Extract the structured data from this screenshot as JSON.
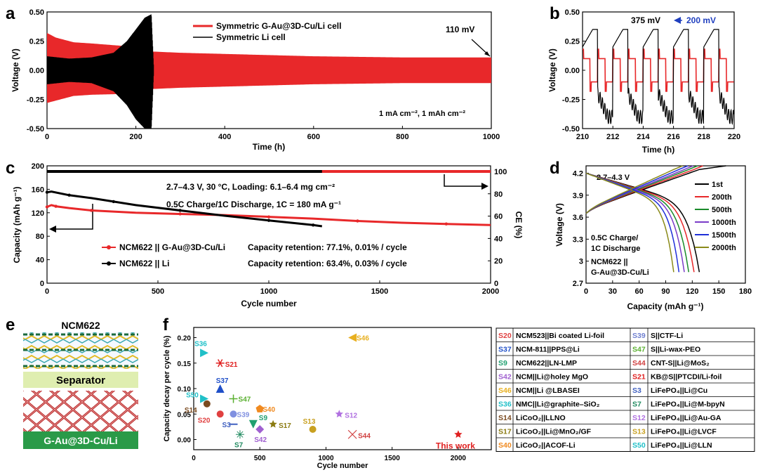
{
  "panels": {
    "a": "a",
    "b": "b",
    "c": "c",
    "d": "d",
    "e": "e",
    "f": "f"
  },
  "colors": {
    "red": "#e8282a",
    "black": "#000000",
    "blue": "#1f3fbf",
    "green": "#1a8a2a"
  },
  "chart_data": [
    {
      "id": "a",
      "type": "line",
      "xlabel": "Time (h)",
      "ylabel": "Voltage (V)",
      "xlim": [
        0,
        1000
      ],
      "ylim": [
        -0.5,
        0.5
      ],
      "xticks": [
        0,
        200,
        400,
        600,
        800,
        1000
      ],
      "yticks": [
        -0.5,
        -0.25,
        0.0,
        0.25,
        0.5
      ],
      "ytick_labels": [
        "-0.50",
        "-0.25",
        "0.00",
        "0.25",
        "0.50"
      ],
      "series": [
        {
          "name": "Symmetric G-Au@3D-Cu/Li cell",
          "color": "#e8282a",
          "envelope": {
            "x": [
              0,
              20,
              60,
              100,
              200,
              240,
              300,
              400,
              500,
              600,
              700,
              800,
              900,
              1000
            ],
            "upper": [
              0.32,
              0.28,
              0.24,
              0.23,
              0.2,
              0.16,
              0.15,
              0.14,
              0.13,
              0.12,
              0.115,
              0.11,
              0.11,
              0.11
            ],
            "lower": [
              -0.28,
              -0.26,
              -0.22,
              -0.21,
              -0.2,
              -0.16,
              -0.15,
              -0.14,
              -0.13,
              -0.12,
              -0.115,
              -0.11,
              -0.11,
              -0.11
            ]
          }
        },
        {
          "name": "Symmetric Li cell",
          "color": "#000000",
          "envelope": {
            "x": [
              0,
              50,
              100,
              150,
              180,
              200,
              220,
              235,
              240
            ],
            "upper": [
              0.12,
              0.1,
              0.11,
              0.15,
              0.25,
              0.35,
              0.45,
              0.48,
              0.05
            ],
            "lower": [
              -0.12,
              -0.1,
              -0.11,
              -0.18,
              -0.3,
              -0.42,
              -0.5,
              -0.5,
              -0.05
            ]
          }
        }
      ],
      "annotations": [
        "110 mV",
        "1 mA cm⁻², 1 mAh cm⁻²"
      ]
    },
    {
      "id": "b",
      "type": "line",
      "xlabel": "Time (h)",
      "ylabel": "Voltage (V)",
      "xlim": [
        210,
        220
      ],
      "ylim": [
        -0.5,
        0.5
      ],
      "xticks": [
        210,
        212,
        214,
        216,
        218,
        220
      ],
      "yticks": [
        -0.5,
        -0.25,
        0.0,
        0.25,
        0.5
      ],
      "ytick_labels": [
        "-0.50",
        "-0.25",
        "0.00",
        "0.25",
        "0.50"
      ],
      "annotations": [
        "375 mV",
        "200 mV"
      ]
    },
    {
      "id": "c",
      "type": "line",
      "xlabel": "Cycle number",
      "ylabel": "Capacity (mAh g⁻¹)",
      "y2label": "CE (%)",
      "xlim": [
        0,
        2000
      ],
      "ylim": [
        0,
        200
      ],
      "y2lim": [
        0,
        105
      ],
      "xticks": [
        0,
        500,
        1000,
        1500,
        2000
      ],
      "yticks": [
        0,
        40,
        80,
        120,
        160,
        200
      ],
      "y2ticks": [
        0,
        20,
        40,
        60,
        80,
        100
      ],
      "series": [
        {
          "name": "NCM622 || G-Au@3D-Cu/Li",
          "color": "#e8282a",
          "x": [
            0,
            20,
            40,
            100,
            200,
            400,
            600,
            800,
            1000,
            1200,
            1400,
            1600,
            1800,
            2000
          ],
          "capacity": [
            130,
            133,
            131,
            128,
            124,
            120,
            118,
            116,
            113,
            110,
            106,
            103,
            101,
            99
          ],
          "ce": [
            100,
            100,
            100,
            100,
            100,
            100,
            100,
            100,
            100,
            100,
            100,
            100,
            100,
            100
          ],
          "retention": "Capacity retention: 77.1%, 0.01% / cycle"
        },
        {
          "name": "NCM622 || Li",
          "color": "#000000",
          "x": [
            0,
            20,
            100,
            200,
            300,
            400,
            600,
            800,
            1000,
            1100,
            1200,
            1240
          ],
          "capacity": [
            155,
            156,
            150,
            145,
            139,
            133,
            124,
            115,
            107,
            103,
            99,
            97
          ],
          "ce": [
            100,
            100,
            100,
            100,
            100,
            100,
            100,
            100,
            100,
            100,
            100,
            100
          ],
          "retention": "Capacity retention: 63.4%, 0.03% / cycle"
        }
      ],
      "annotations": [
        "2.7–4.3 V, 30 °C, Loading: 6.1–6.4 mg cm⁻²",
        "0.5C Charge/1C Discharge, 1C = 180 mA g⁻¹"
      ]
    },
    {
      "id": "d",
      "type": "line",
      "xlabel": "Capacity (mAh g⁻¹)",
      "ylabel": "Voltage (V)",
      "xlim": [
        0,
        180
      ],
      "ylim": [
        2.7,
        4.3
      ],
      "xticks": [
        0,
        30,
        60,
        90,
        120,
        150,
        180
      ],
      "yticks": [
        2.7,
        3.0,
        3.3,
        3.6,
        3.9,
        4.2
      ],
      "series": [
        {
          "name": "1st",
          "color": "#000000",
          "cap": 128
        },
        {
          "name": "200th",
          "color": "#e8282a",
          "cap": 122
        },
        {
          "name": "500th",
          "color": "#1a8a2a",
          "cap": 116
        },
        {
          "name": "1000th",
          "color": "#7a3cc8",
          "cap": 111
        },
        {
          "name": "1500th",
          "color": "#1f2fd8",
          "cap": 105
        },
        {
          "name": "2000th",
          "color": "#8a8a1a",
          "cap": 99
        }
      ],
      "annotations": [
        "2.7–4.3 V",
        "0.5C Charge/",
        "1C Discharge",
        "NCM622 ||",
        "G-Au@3D-Cu/Li"
      ]
    },
    {
      "id": "f",
      "type": "scatter",
      "xlabel": "Cycle number",
      "ylabel": "Capacity decay per cycle (%)",
      "xlim": [
        0,
        2250
      ],
      "ylim": [
        -0.02,
        0.22
      ],
      "xticks": [
        0,
        500,
        1000,
        1500,
        2000
      ],
      "yticks": [
        0.0,
        0.05,
        0.1,
        0.15,
        0.2
      ],
      "ytick_labels": [
        "0.00",
        "0.05",
        "0.10",
        "0.15",
        "0.20"
      ],
      "points": [
        {
          "label": "S46",
          "x": 1200,
          "y": 0.2,
          "color": "#e8b020",
          "marker": "tri-left"
        },
        {
          "label": "S36",
          "x": 80,
          "y": 0.17,
          "color": "#20c0c8",
          "marker": "tri-right"
        },
        {
          "label": "S21",
          "x": 200,
          "y": 0.15,
          "color": "#e02020",
          "marker": "star6"
        },
        {
          "label": "S37",
          "x": 200,
          "y": 0.1,
          "color": "#1f4fc8",
          "marker": "tri-up"
        },
        {
          "label": "S47",
          "x": 300,
          "y": 0.08,
          "color": "#5ab030",
          "marker": "plus"
        },
        {
          "label": "S50",
          "x": 80,
          "y": 0.08,
          "color": "#20c0c8",
          "marker": "tri-right"
        },
        {
          "label": "S14",
          "x": 100,
          "y": 0.07,
          "color": "#7a4a20",
          "marker": "circle"
        },
        {
          "label": "S40",
          "x": 500,
          "y": 0.06,
          "color": "#f08a20",
          "marker": "pentagon"
        },
        {
          "label": "S39",
          "x": 300,
          "y": 0.05,
          "color": "#8090e0",
          "marker": "circle"
        },
        {
          "label": "S20",
          "x": 200,
          "y": 0.05,
          "color": "#e04040",
          "marker": "circle"
        },
        {
          "label": "S12",
          "x": 1100,
          "y": 0.05,
          "color": "#b070e0",
          "marker": "star"
        },
        {
          "label": "S3",
          "x": 300,
          "y": 0.03,
          "color": "#4060c0",
          "marker": "dash"
        },
        {
          "label": "S9",
          "x": 450,
          "y": 0.03,
          "color": "#20a070",
          "marker": "tri-down"
        },
        {
          "label": "S17",
          "x": 600,
          "y": 0.03,
          "color": "#8a7a10",
          "marker": "star"
        },
        {
          "label": "S42",
          "x": 500,
          "y": 0.02,
          "color": "#a060d0",
          "marker": "diamond"
        },
        {
          "label": "S13",
          "x": 900,
          "y": 0.02,
          "color": "#c8a020",
          "marker": "circle"
        },
        {
          "label": "S7",
          "x": 350,
          "y": 0.01,
          "color": "#208a60",
          "marker": "asterisk"
        },
        {
          "label": "S44",
          "x": 1200,
          "y": 0.01,
          "color": "#d04040",
          "marker": "x"
        },
        {
          "label": "This work",
          "x": 2000,
          "y": 0.01,
          "color": "#e02020",
          "marker": "star"
        }
      ]
    }
  ],
  "panel_e": {
    "top": "NCM622",
    "separator": "Separator",
    "bottom": "G-Au@3D-Cu/Li"
  },
  "legend_table": [
    {
      "id": "S20",
      "text": "NCM523||Bi coated Li-foil",
      "color": "#e04040"
    },
    {
      "id": "S39",
      "text": "S||CTF-Li",
      "color": "#7080d0"
    },
    {
      "id": "S37",
      "text": "NCM-811||PPS@Li",
      "color": "#1f4fc8"
    },
    {
      "id": "S47",
      "text": "S||Li-wax-PEO",
      "color": "#5ab030"
    },
    {
      "id": "S9",
      "text": "NCM622||LN-LMP",
      "color": "#20a070"
    },
    {
      "id": "S44",
      "text": "CNT-S||Li@MoS₂",
      "color": "#d04040"
    },
    {
      "id": "S42",
      "text": "NCM||Li@holey MgO",
      "color": "#a060d0"
    },
    {
      "id": "S21",
      "text": "KB@S||PTCDI/Li-foil",
      "color": "#e02020"
    },
    {
      "id": "S46",
      "text": "NCM||Li @LBASEI",
      "color": "#e8b020"
    },
    {
      "id": "S3",
      "text": "LiFePO₄||Li@Cu",
      "color": "#4060c0"
    },
    {
      "id": "S36",
      "text": "NMC||Li@graphite–SiO₂",
      "color": "#20c0c8"
    },
    {
      "id": "S7",
      "text": "LiFePO₄||Li@M-bpyN",
      "color": "#208a60"
    },
    {
      "id": "S14",
      "text": "LiCoO₂||LLNO",
      "color": "#7a4a20"
    },
    {
      "id": "S12",
      "text": "LiFePO₄||Li@Au-GA",
      "color": "#b070e0"
    },
    {
      "id": "S17",
      "text": "LiCoO₂||Li@MnO₂/GF",
      "color": "#8a7a10"
    },
    {
      "id": "S13",
      "text": "LiFePO₄||Li@LVCF",
      "color": "#c8a020"
    },
    {
      "id": "S40",
      "text": "LiCoO₂||ACOF-Li",
      "color": "#f08a20"
    },
    {
      "id": "S50",
      "text": "LiFePO₄||Li@LLN",
      "color": "#20c0c8"
    }
  ]
}
